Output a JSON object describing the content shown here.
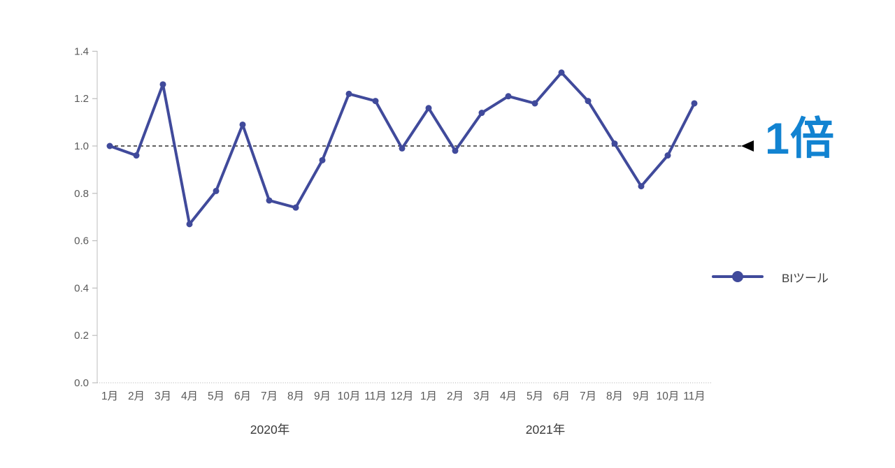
{
  "chart_data": {
    "type": "line",
    "title": "",
    "xlabel": "",
    "ylabel": "",
    "grid": false,
    "categories": [
      "1月",
      "2月",
      "3月",
      "4月",
      "5月",
      "6月",
      "7月",
      "8月",
      "9月",
      "10月",
      "11月",
      "12月",
      "1月",
      "2月",
      "3月",
      "4月",
      "5月",
      "6月",
      "7月",
      "8月",
      "9月",
      "10月",
      "11月"
    ],
    "category_groups": [
      {
        "label": "2020年",
        "start": 0,
        "count": 12
      },
      {
        "label": "2021年",
        "start": 12,
        "count": 11
      }
    ],
    "series": [
      {
        "name": "BIツール",
        "color": "#404A9B",
        "values": [
          1.0,
          0.96,
          1.26,
          0.67,
          0.81,
          1.09,
          0.77,
          0.74,
          0.94,
          1.22,
          1.19,
          0.99,
          1.16,
          0.98,
          1.14,
          1.21,
          1.18,
          1.31,
          1.19,
          1.01,
          0.83,
          0.96,
          1.18
        ]
      }
    ],
    "ylim": [
      0.0,
      1.4
    ],
    "ytick_step": 0.2,
    "ytick_labels": [
      "0.0",
      "0.2",
      "0.4",
      "0.6",
      "0.8",
      "1.0",
      "1.2",
      "1.4"
    ],
    "legend": {
      "position": "right-middle",
      "entries": [
        "BIツール"
      ]
    },
    "reference_line": {
      "value": 1.0,
      "label": "1倍",
      "style": "dashed",
      "color": "#000000",
      "arrow": "left-triangle",
      "label_color": "#1283D1"
    },
    "axis": {
      "y_line_color": "#C8C8C8",
      "x_line_color": "#ACACAC",
      "x_line_style": "dotted",
      "tick_color": "#BDBDBD",
      "tick_label_color": "#595959",
      "group_label_color": "#3A3A3A"
    }
  }
}
